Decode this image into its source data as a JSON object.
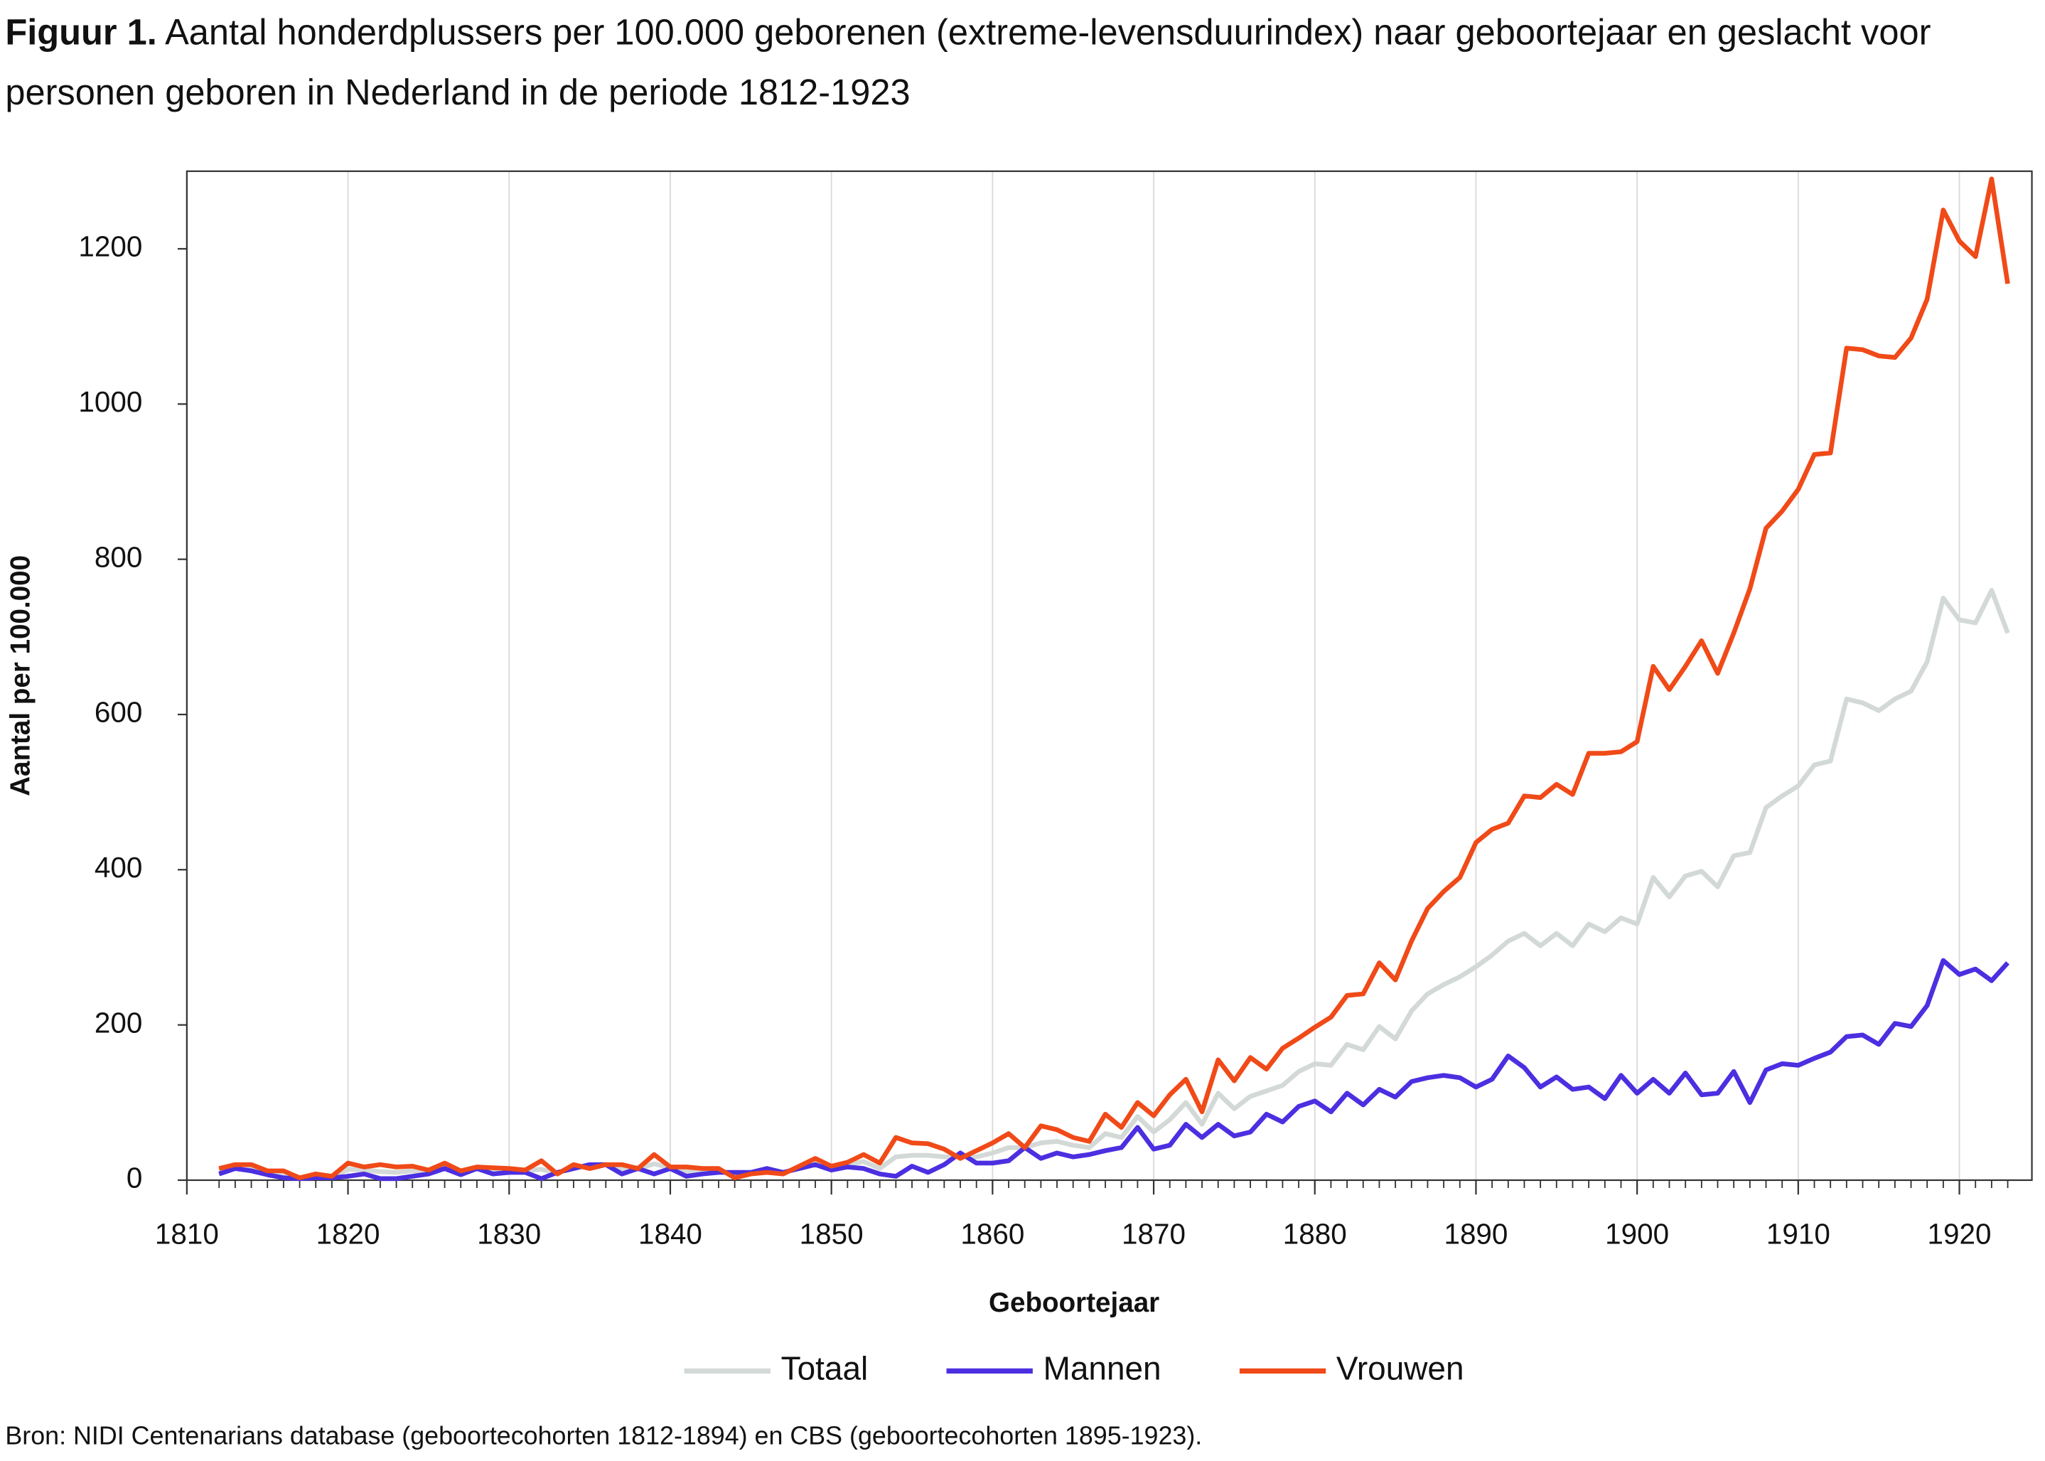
{
  "chart_data": {
    "type": "line",
    "title_label": "Figuur 1.",
    "title": "Aantal honderdplussers per 100.000 geborenen (extreme-levensduurindex) naar geboortejaar en geslacht voor personen geboren in Nederland in de periode 1812-1923",
    "xlabel": "Geboortejaar",
    "ylabel": "Aantal per 100.000",
    "source": "Bron: NIDI Centenarians database (geboortecohorten 1812-1894) en CBS (geboortecohorten 1895-1923).",
    "xlim": [
      1810,
      1924.5
    ],
    "ylim": [
      0,
      1300
    ],
    "xticks": [
      1810,
      1820,
      1830,
      1840,
      1850,
      1860,
      1870,
      1880,
      1890,
      1900,
      1910,
      1920
    ],
    "yticks": [
      0,
      200,
      400,
      600,
      800,
      1000,
      1200
    ],
    "grid": "x",
    "x": [
      1812,
      1813,
      1814,
      1815,
      1816,
      1817,
      1818,
      1819,
      1820,
      1821,
      1822,
      1823,
      1824,
      1825,
      1826,
      1827,
      1828,
      1829,
      1830,
      1831,
      1832,
      1833,
      1834,
      1835,
      1836,
      1837,
      1838,
      1839,
      1840,
      1841,
      1842,
      1843,
      1844,
      1845,
      1846,
      1847,
      1848,
      1849,
      1850,
      1851,
      1852,
      1853,
      1854,
      1855,
      1856,
      1857,
      1858,
      1859,
      1860,
      1861,
      1862,
      1863,
      1864,
      1865,
      1866,
      1867,
      1868,
      1869,
      1870,
      1871,
      1872,
      1873,
      1874,
      1875,
      1876,
      1877,
      1878,
      1879,
      1880,
      1881,
      1882,
      1883,
      1884,
      1885,
      1886,
      1887,
      1888,
      1889,
      1890,
      1891,
      1892,
      1893,
      1894,
      1895,
      1896,
      1897,
      1898,
      1899,
      1900,
      1901,
      1902,
      1903,
      1904,
      1905,
      1906,
      1907,
      1908,
      1909,
      1910,
      1911,
      1912,
      1913,
      1914,
      1915,
      1916,
      1917,
      1918,
      1919,
      1920,
      1921,
      1922,
      1923
    ],
    "series": [
      {
        "name": "Totaal",
        "color": "#d3d9d7",
        "values": [
          12,
          18,
          16,
          10,
          8,
          3,
          6,
          4,
          14,
          13,
          11,
          10,
          12,
          11,
          19,
          10,
          16,
          12,
          13,
          12,
          14,
          9,
          18,
          18,
          20,
          14,
          15,
          21,
          16,
          11,
          12,
          13,
          7,
          9,
          13,
          9,
          17,
          24,
          16,
          20,
          24,
          15,
          30,
          32,
          32,
          30,
          30,
          30,
          35,
          42,
          42,
          48,
          50,
          45,
          42,
          60,
          55,
          82,
          62,
          78,
          100,
          72,
          112,
          92,
          108,
          115,
          122,
          140,
          150,
          148,
          175,
          168,
          198,
          182,
          218,
          240,
          252,
          262,
          275,
          290,
          308,
          318,
          302,
          318,
          302,
          330,
          320,
          338,
          330,
          390,
          365,
          392,
          398,
          378,
          418,
          422,
          480,
          495,
          508,
          535,
          540,
          620,
          615,
          605,
          620,
          630,
          668,
          750,
          722,
          718,
          760,
          705
        ]
      },
      {
        "name": "Mannen",
        "color": "#4b2fe0",
        "values": [
          8,
          15,
          12,
          7,
          3,
          2,
          3,
          3,
          5,
          8,
          2,
          2,
          5,
          8,
          15,
          7,
          15,
          8,
          10,
          10,
          2,
          10,
          15,
          20,
          20,
          8,
          15,
          8,
          15,
          5,
          8,
          10,
          10,
          10,
          15,
          10,
          15,
          20,
          13,
          17,
          15,
          8,
          5,
          18,
          10,
          20,
          35,
          22,
          22,
          25,
          42,
          28,
          35,
          30,
          33,
          38,
          42,
          68,
          40,
          45,
          72,
          55,
          72,
          57,
          62,
          85,
          75,
          95,
          102,
          88,
          112,
          97,
          117,
          107,
          127,
          132,
          135,
          132,
          120,
          130,
          160,
          145,
          120,
          133,
          117,
          120,
          105,
          135,
          112,
          130,
          112,
          138,
          110,
          112,
          140,
          100,
          142,
          150,
          148,
          157,
          165,
          185,
          187,
          175,
          202,
          198,
          225,
          283,
          265,
          272,
          257,
          280
        ]
      },
      {
        "name": "Vrouwen",
        "color": "#f04a18",
        "values": [
          15,
          20,
          20,
          12,
          12,
          3,
          8,
          5,
          22,
          17,
          20,
          17,
          18,
          13,
          22,
          12,
          17,
          16,
          15,
          13,
          25,
          8,
          20,
          15,
          20,
          20,
          15,
          33,
          17,
          17,
          15,
          15,
          3,
          8,
          10,
          8,
          18,
          28,
          18,
          23,
          33,
          22,
          55,
          48,
          47,
          40,
          28,
          38,
          48,
          60,
          42,
          70,
          65,
          55,
          50,
          85,
          68,
          100,
          83,
          110,
          130,
          88,
          155,
          128,
          158,
          143,
          170,
          183,
          197,
          210,
          238,
          240,
          280,
          258,
          308,
          350,
          372,
          390,
          435,
          452,
          460,
          495,
          493,
          510,
          497,
          550,
          550,
          552,
          565,
          662,
          632,
          662,
          695,
          653,
          705,
          762,
          840,
          862,
          890,
          935,
          937,
          1072,
          1070,
          1062,
          1060,
          1085,
          1135,
          1250,
          1210,
          1190,
          1290,
          1155
        ]
      }
    ]
  }
}
